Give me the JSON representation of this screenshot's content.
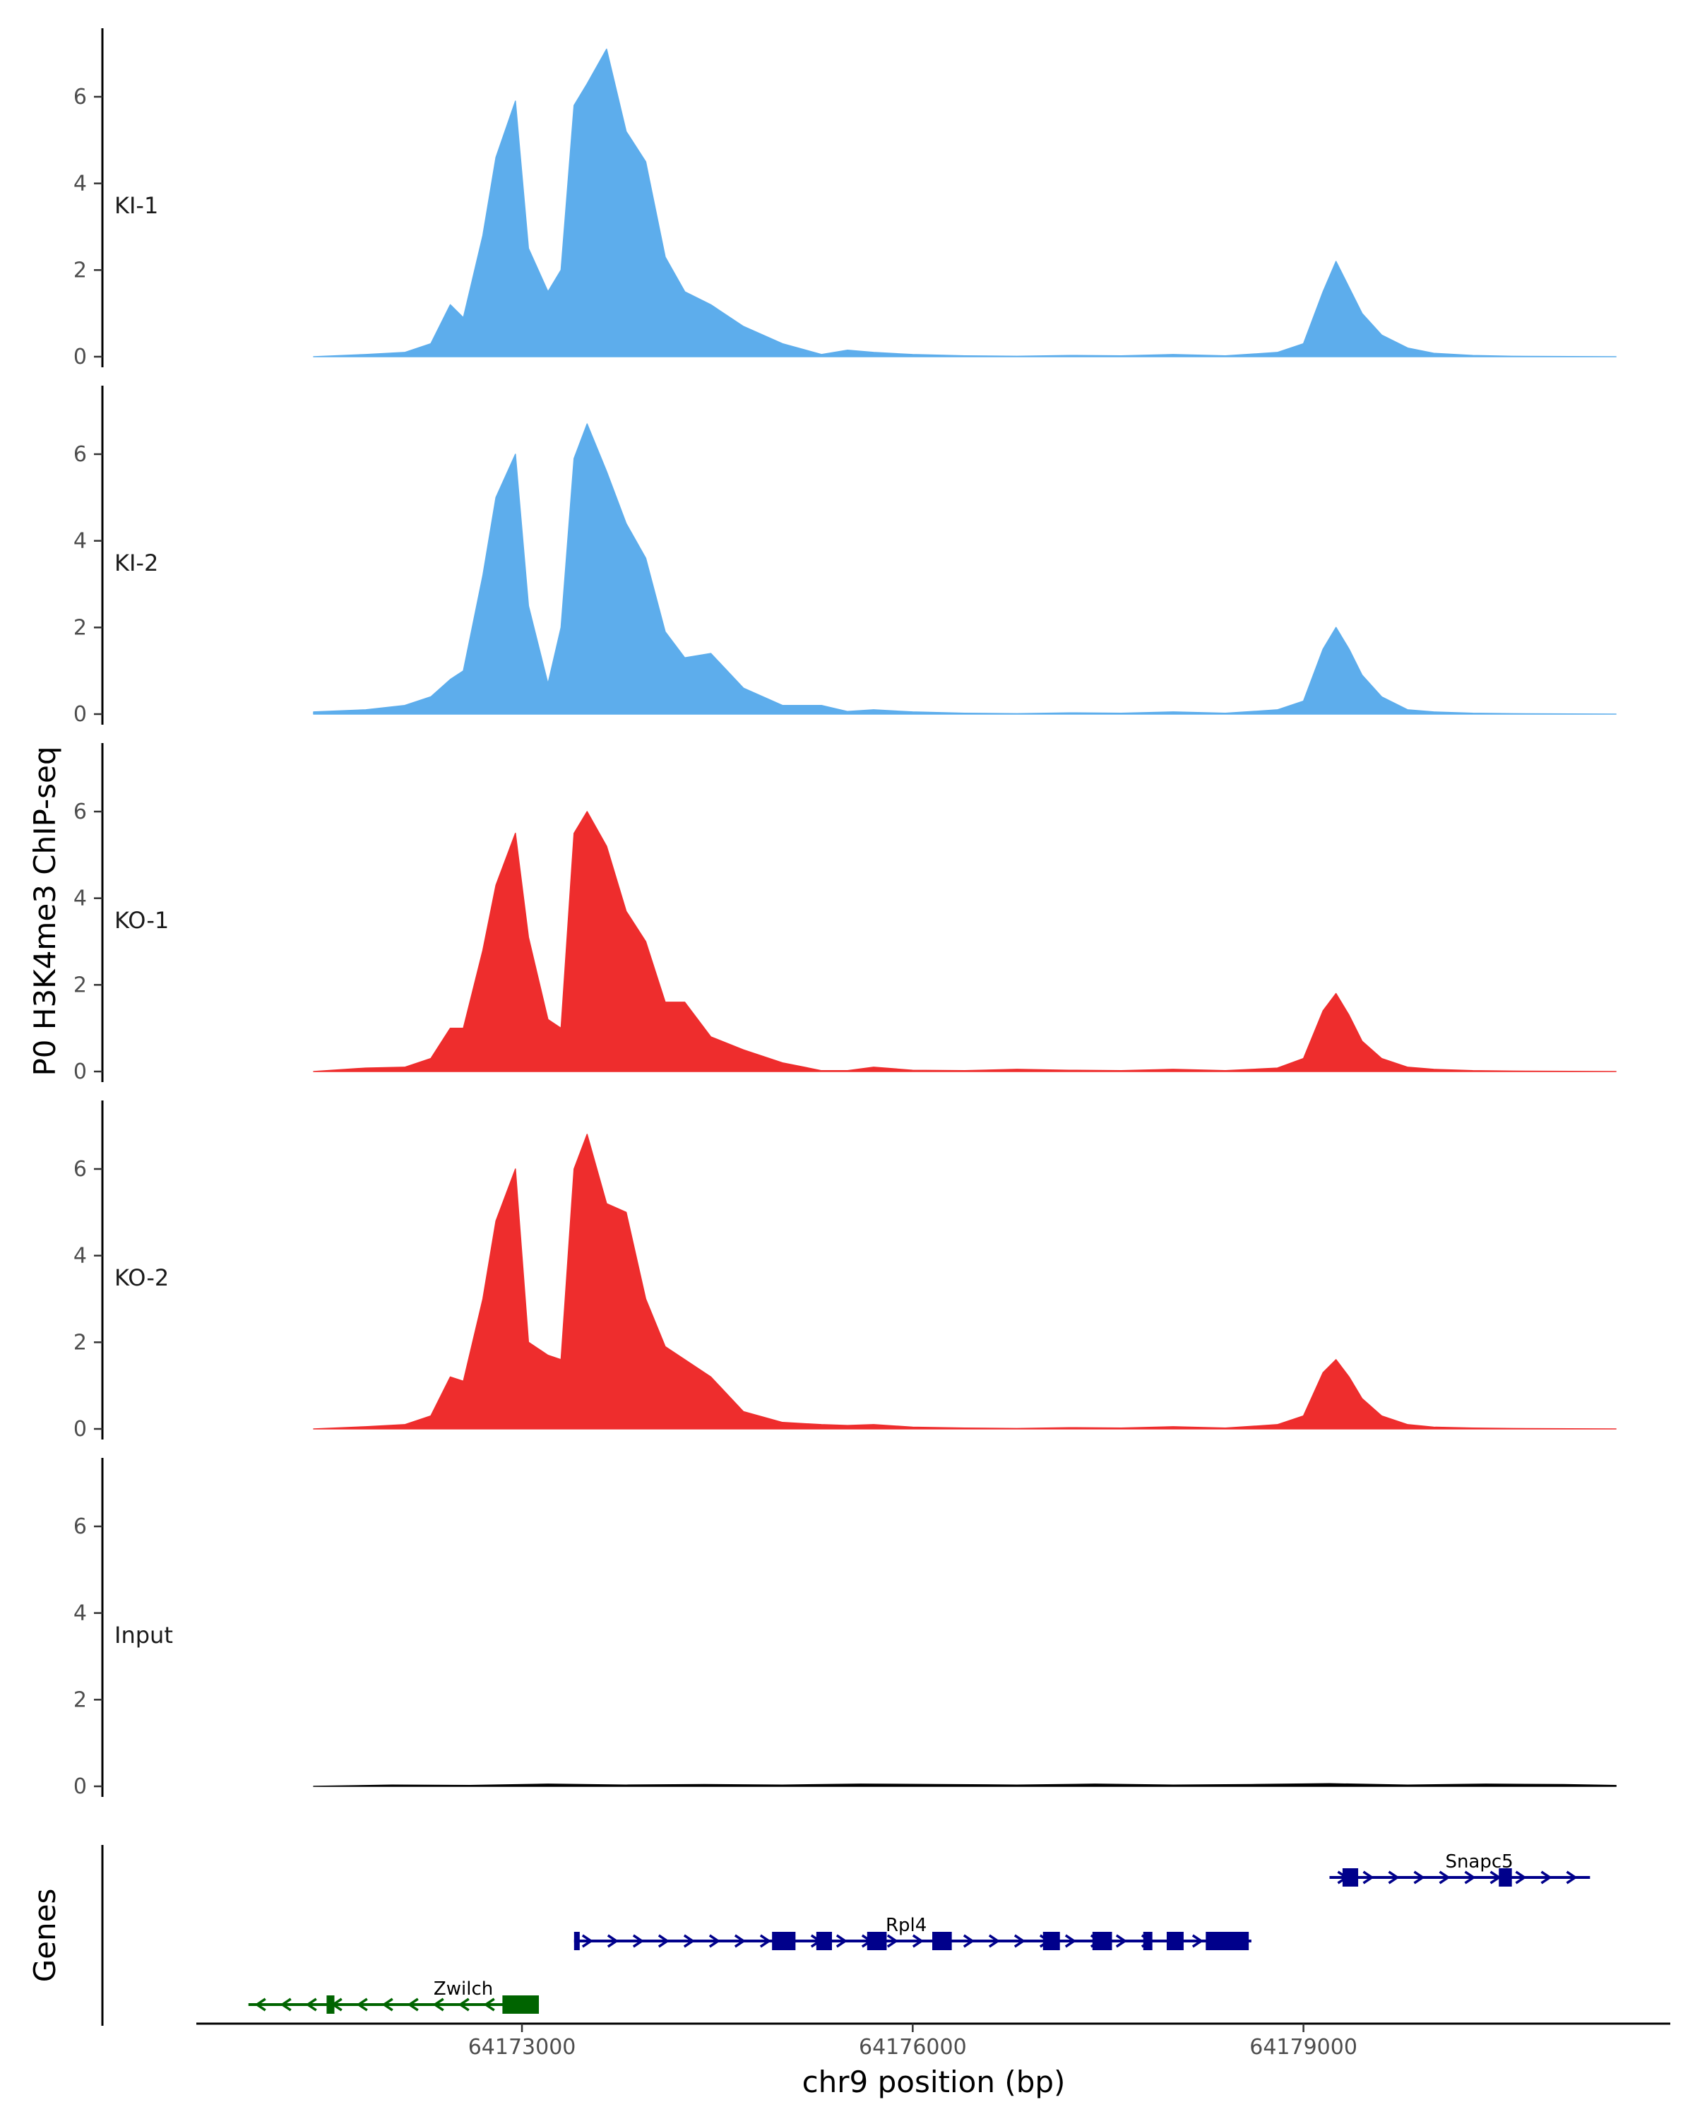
{
  "chart_data": {
    "type": "area",
    "ylabel": "P0 H3K4me3 ChIP-seq",
    "genes_label": "Genes",
    "xlabel": "chr9 position (bp)",
    "xlim": [
      64170500,
      64181800
    ],
    "x_ticks": [
      64173000,
      64176000,
      64179000
    ],
    "x_tick_labels": [
      "64173000",
      "64176000",
      "64179000"
    ],
    "ylim": [
      0,
      7.5
    ],
    "y_ticks": [
      0,
      2,
      4,
      6
    ],
    "y_tick_labels": [
      "0",
      "2",
      "4",
      "6"
    ],
    "tracks": [
      {
        "name": "KI-1",
        "color": "#5DADEC",
        "x": [
          64171400,
          64171800,
          64172100,
          64172300,
          64172450,
          64172550,
          64172700,
          64172800,
          64172950,
          64173050,
          64173200,
          64173300,
          64173400,
          64173500,
          64173650,
          64173800,
          64173950,
          64174100,
          64174250,
          64174450,
          64174700,
          64175000,
          64175300,
          64175500,
          64175700,
          64176000,
          64176400,
          64176800,
          64177200,
          64177600,
          64178000,
          64178400,
          64178800,
          64179000,
          64179150,
          64179250,
          64179350,
          64179450,
          64179600,
          64179800,
          64180000,
          64180300,
          64180600,
          64181400
        ],
        "values": [
          0.0,
          0.05,
          0.1,
          0.3,
          1.2,
          0.9,
          2.8,
          4.6,
          5.9,
          2.5,
          1.5,
          2.0,
          5.8,
          6.3,
          7.1,
          5.2,
          4.5,
          2.3,
          1.5,
          1.2,
          0.7,
          0.3,
          0.05,
          0.15,
          0.1,
          0.05,
          0.02,
          0.01,
          0.03,
          0.02,
          0.05,
          0.02,
          0.1,
          0.3,
          1.5,
          2.2,
          1.6,
          1.0,
          0.5,
          0.2,
          0.08,
          0.03,
          0.01,
          0.0
        ]
      },
      {
        "name": "KI-2",
        "color": "#5DADEC",
        "x": [
          64171400,
          64171800,
          64172100,
          64172300,
          64172450,
          64172550,
          64172700,
          64172800,
          64172950,
          64173050,
          64173200,
          64173300,
          64173400,
          64173500,
          64173650,
          64173800,
          64173950,
          64174100,
          64174250,
          64174450,
          64174700,
          64175000,
          64175300,
          64175500,
          64175700,
          64176000,
          64176400,
          64176800,
          64177200,
          64177600,
          64178000,
          64178400,
          64178800,
          64179000,
          64179150,
          64179250,
          64179350,
          64179450,
          64179600,
          64179800,
          64180000,
          64180300,
          64180600,
          64181400
        ],
        "values": [
          0.05,
          0.1,
          0.2,
          0.4,
          0.8,
          1.0,
          3.2,
          5.0,
          6.0,
          2.5,
          0.7,
          2.0,
          5.9,
          6.7,
          5.6,
          4.4,
          3.6,
          1.9,
          1.3,
          1.4,
          0.6,
          0.2,
          0.2,
          0.06,
          0.1,
          0.05,
          0.02,
          0.01,
          0.03,
          0.02,
          0.05,
          0.02,
          0.1,
          0.3,
          1.5,
          2.0,
          1.5,
          0.9,
          0.4,
          0.1,
          0.05,
          0.02,
          0.01,
          0.0
        ]
      },
      {
        "name": "KO-1",
        "color": "#EE2D2D",
        "x": [
          64171400,
          64171800,
          64172100,
          64172300,
          64172450,
          64172550,
          64172700,
          64172800,
          64172950,
          64173050,
          64173200,
          64173300,
          64173400,
          64173500,
          64173650,
          64173800,
          64173950,
          64174100,
          64174250,
          64174450,
          64174700,
          64175000,
          64175300,
          64175500,
          64175700,
          64176000,
          64176400,
          64176800,
          64177200,
          64177600,
          64178000,
          64178400,
          64178800,
          64179000,
          64179150,
          64179250,
          64179350,
          64179450,
          64179600,
          64179800,
          64180000,
          64180300,
          64180600,
          64181400
        ],
        "values": [
          0.0,
          0.08,
          0.1,
          0.3,
          1.0,
          1.0,
          2.8,
          4.3,
          5.5,
          3.1,
          1.2,
          1.0,
          5.5,
          6.0,
          5.2,
          3.7,
          3.0,
          1.6,
          1.6,
          0.8,
          0.5,
          0.2,
          0.02,
          0.02,
          0.1,
          0.03,
          0.02,
          0.05,
          0.03,
          0.02,
          0.05,
          0.02,
          0.08,
          0.3,
          1.4,
          1.8,
          1.3,
          0.7,
          0.3,
          0.1,
          0.05,
          0.02,
          0.01,
          0.0
        ]
      },
      {
        "name": "KO-2",
        "color": "#EE2D2D",
        "x": [
          64171400,
          64171800,
          64172100,
          64172300,
          64172450,
          64172550,
          64172700,
          64172800,
          64172950,
          64173050,
          64173200,
          64173300,
          64173400,
          64173500,
          64173650,
          64173800,
          64173950,
          64174100,
          64174250,
          64174450,
          64174700,
          64175000,
          64175300,
          64175500,
          64175700,
          64176000,
          64176400,
          64176800,
          64177200,
          64177600,
          64178000,
          64178400,
          64178800,
          64179000,
          64179150,
          64179250,
          64179350,
          64179450,
          64179600,
          64179800,
          64180000,
          64180300,
          64180600,
          64181400
        ],
        "values": [
          0.0,
          0.05,
          0.1,
          0.3,
          1.2,
          1.1,
          3.0,
          4.8,
          6.0,
          2.0,
          1.7,
          1.6,
          6.0,
          6.8,
          5.2,
          5.0,
          3.0,
          1.9,
          1.6,
          1.2,
          0.4,
          0.15,
          0.1,
          0.08,
          0.1,
          0.04,
          0.02,
          0.01,
          0.03,
          0.02,
          0.05,
          0.02,
          0.1,
          0.3,
          1.3,
          1.6,
          1.2,
          0.7,
          0.3,
          0.1,
          0.04,
          0.02,
          0.01,
          0.0
        ]
      },
      {
        "name": "Input",
        "color": "#000000",
        "x": [
          64171400,
          64172000,
          64172600,
          64173200,
          64173800,
          64174400,
          64175000,
          64175600,
          64176200,
          64176800,
          64177400,
          64178000,
          64178600,
          64179200,
          64179800,
          64180400,
          64181000,
          64181400
        ],
        "values": [
          0.0,
          0.03,
          0.02,
          0.05,
          0.03,
          0.04,
          0.03,
          0.05,
          0.04,
          0.03,
          0.05,
          0.03,
          0.04,
          0.06,
          0.03,
          0.05,
          0.04,
          0.02
        ]
      }
    ],
    "genes": [
      {
        "name": "Snapc5",
        "color": "#00008B",
        "strand": "+",
        "row": 0,
        "start": 64179200,
        "end": 64181200,
        "label_at": 64180350,
        "exons": [
          [
            64179300,
            64179420
          ],
          [
            64180500,
            64180600
          ]
        ]
      },
      {
        "name": "Rpl4",
        "color": "#00008B",
        "strand": "+",
        "row": 1,
        "start": 64173400,
        "end": 64178600,
        "label_at": 64175950,
        "exons": [
          [
            64173400,
            64173430
          ],
          [
            64174920,
            64175100
          ],
          [
            64175260,
            64175380
          ],
          [
            64175650,
            64175800
          ],
          [
            64176150,
            64176300
          ],
          [
            64177000,
            64177130
          ],
          [
            64177380,
            64177530
          ],
          [
            64177770,
            64177840
          ],
          [
            64177950,
            64178080
          ],
          [
            64178250,
            64178580
          ]
        ]
      },
      {
        "name": "Zwilch",
        "color": "#006400",
        "strand": "-",
        "row": 2,
        "start": 64170900,
        "end": 64173050,
        "label_at": 64172550,
        "exons": [
          [
            64171500,
            64171560
          ],
          [
            64172850,
            64173130
          ]
        ]
      }
    ]
  }
}
